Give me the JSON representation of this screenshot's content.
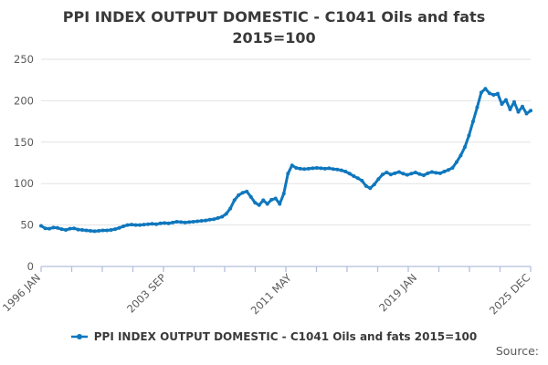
{
  "title": {
    "line1": "PPI INDEX OUTPUT DOMESTIC - C1041 Oils and fats",
    "line2": "2015=100"
  },
  "chart_data": {
    "type": "line",
    "title": "PPI INDEX OUTPUT DOMESTIC - C1041 Oils and fats 2015=100",
    "series": [
      {
        "name": "PPI INDEX OUTPUT DOMESTIC - C1041 Oils and fats 2015=100",
        "frequency": "quarterly",
        "x_start": "1996 Q1",
        "x_end": "2025 Q4",
        "values": [
          49,
          46,
          45.5,
          47,
          46.5,
          45,
          44,
          45.5,
          46,
          44.5,
          44,
          43.5,
          43,
          42.5,
          43,
          43.5,
          43.5,
          44,
          45,
          46.5,
          48.5,
          50,
          50.5,
          50,
          50,
          50.5,
          51,
          51.5,
          51,
          52,
          52.5,
          52,
          53,
          54,
          53.5,
          53,
          53.5,
          54,
          54.5,
          55,
          55.5,
          56.5,
          57,
          58.5,
          60,
          63.5,
          70,
          80,
          86,
          89,
          90.5,
          84,
          77,
          74,
          80,
          75.5,
          80.5,
          82,
          75.5,
          88,
          112,
          122,
          119,
          118,
          117.5,
          118,
          118.5,
          119,
          118.5,
          118,
          118.5,
          117.5,
          117,
          116,
          114.5,
          112,
          109,
          106.5,
          103.5,
          97,
          94.5,
          99,
          105.5,
          111,
          113.5,
          111,
          112.5,
          114,
          112,
          110.5,
          112,
          113.5,
          111.5,
          110,
          112.5,
          114,
          113,
          112.5,
          114.5,
          116.5,
          119,
          126,
          134,
          144,
          158,
          175,
          192,
          210,
          214.5,
          209,
          207,
          208.5,
          196,
          201,
          189.5,
          198.5,
          186.5,
          193,
          184.5,
          188
        ]
      }
    ],
    "ylim": [
      0,
      250
    ],
    "y_ticks": [
      0,
      50,
      100,
      150,
      200,
      250
    ],
    "x_tick_labels": [
      "1996 JAN",
      "2003 SEP",
      "2011 MAY",
      "2019 JAN",
      "2025 DEC"
    ],
    "x_tick_months": [
      0,
      92,
      184,
      276,
      359
    ],
    "x_total_months": 359,
    "grid": "horizontal",
    "legend_position": "bottom",
    "line_color": "#0f77bd",
    "grid_color": "#e2e2e2",
    "axis_color": "#b4bfdd",
    "tick_label_color": "#5a5a5a"
  },
  "legend": {
    "label": "PPI INDEX OUTPUT DOMESTIC - C1041 Oils and fats 2015=100"
  },
  "footer": {
    "source_label": "Source:"
  }
}
